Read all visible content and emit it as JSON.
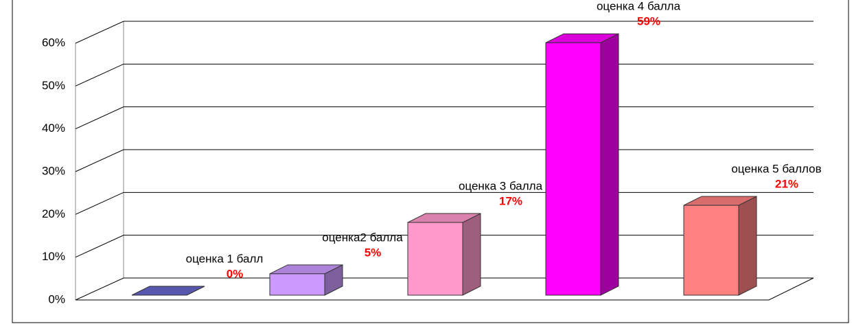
{
  "chart_data": {
    "type": "bar3d",
    "categories": [
      "оценка 1 балл",
      "оценка2 балла",
      "оценка 3 балла",
      "оценка 4 балла",
      "оценка 5 баллов"
    ],
    "values": [
      0,
      5,
      17,
      59,
      21
    ],
    "value_labels": [
      "0%",
      "5%",
      "17%",
      "59%",
      "21%"
    ],
    "colors": [
      "#6666cc",
      "#cc99ff",
      "#ff99cc",
      "#ff00ff",
      "#ff8080"
    ],
    "ylim": [
      0,
      60
    ],
    "yticks": [
      {
        "value": 0,
        "label": "0%"
      },
      {
        "value": 10,
        "label": "10%"
      },
      {
        "value": 20,
        "label": "20%"
      },
      {
        "value": 30,
        "label": "30%"
      },
      {
        "value": 40,
        "label": "40%"
      },
      {
        "value": 50,
        "label": "50%"
      },
      {
        "value": 60,
        "label": "60%"
      }
    ],
    "grid": true
  }
}
